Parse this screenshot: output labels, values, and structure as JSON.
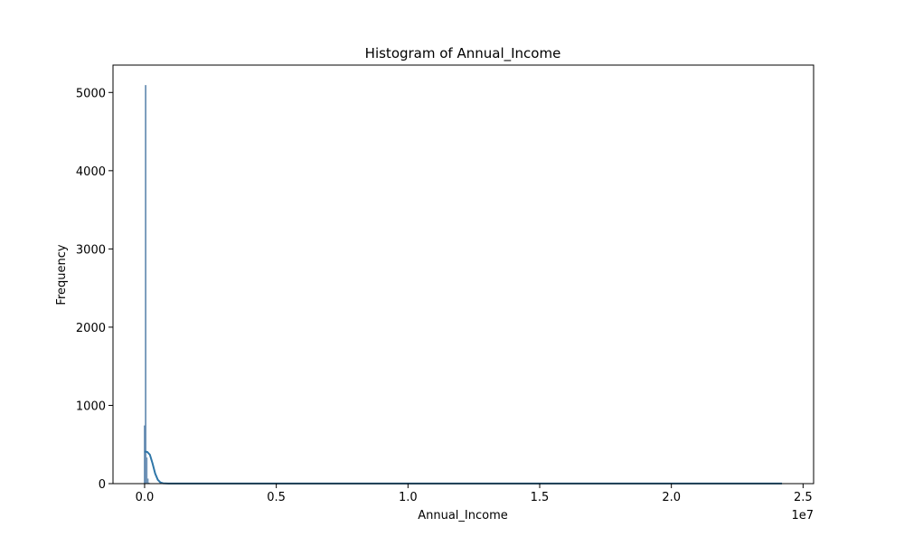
{
  "chart_data": {
    "type": "bar",
    "title": "Histogram of Annual_Income",
    "xlabel": "Annual_Income",
    "ylabel": "Frequency",
    "x_scale_label": "1e7",
    "xlim": [
      -1200000,
      25400000
    ],
    "ylim": [
      0,
      5350
    ],
    "x_ticks": [
      {
        "value": 0,
        "label": "0.0"
      },
      {
        "value": 5000000,
        "label": "0.5"
      },
      {
        "value": 10000000,
        "label": "1.0"
      },
      {
        "value": 15000000,
        "label": "1.5"
      },
      {
        "value": 20000000,
        "label": "2.0"
      },
      {
        "value": 25000000,
        "label": "2.5"
      }
    ],
    "y_ticks": [
      {
        "value": 0,
        "label": "0"
      },
      {
        "value": 1000,
        "label": "1000"
      },
      {
        "value": 2000,
        "label": "2000"
      },
      {
        "value": 3000,
        "label": "3000"
      },
      {
        "value": 4000,
        "label": "4000"
      },
      {
        "value": 5000,
        "label": "5000"
      }
    ],
    "bins": [
      {
        "x0": -20000,
        "x1": 20000,
        "count": 740
      },
      {
        "x0": 20000,
        "x1": 60000,
        "count": 5090
      },
      {
        "x0": 60000,
        "x1": 100000,
        "count": 330
      },
      {
        "x0": 100000,
        "x1": 140000,
        "count": 60
      },
      {
        "x0": 140000,
        "x1": 180000,
        "count": 8
      }
    ],
    "kde": [
      [
        0,
        410
      ],
      [
        100000,
        405
      ],
      [
        200000,
        370
      ],
      [
        300000,
        260
      ],
      [
        400000,
        130
      ],
      [
        500000,
        50
      ],
      [
        600000,
        15
      ],
      [
        700000,
        5
      ],
      [
        900000,
        2
      ],
      [
        2000000,
        1
      ],
      [
        24200000,
        1
      ]
    ],
    "grid": false,
    "colors": {
      "bar_fill": "#6f93b8",
      "bar_edge": "#5f87ae",
      "kde_line": "#2f76a8",
      "axis": "#000000"
    }
  }
}
